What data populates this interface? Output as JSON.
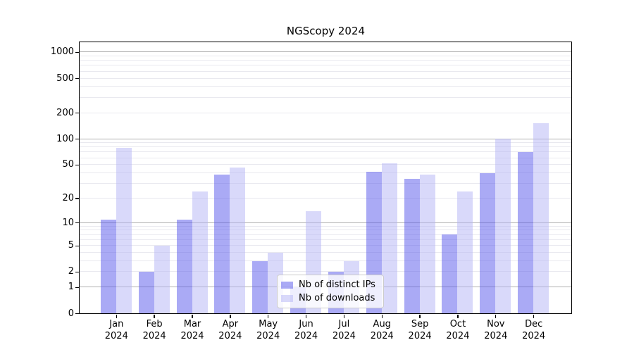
{
  "figure": {
    "title": "NGScopy 2024"
  },
  "chart_data": {
    "type": "bar",
    "title": "NGScopy 2024",
    "xlabel": "",
    "ylabel": "",
    "categories": [
      "Jan",
      "Feb",
      "Mar",
      "Apr",
      "May",
      "Jun",
      "Jul",
      "Aug",
      "Sep",
      "Oct",
      "Nov",
      "Dec"
    ],
    "category_year": "2024",
    "series": [
      {
        "name": "Nb of distinct IPs",
        "color": "#aaaaf5",
        "render_color": "rgba(85,85,235,0.5)",
        "values": [
          11,
          2,
          11,
          38,
          3,
          1,
          2,
          41,
          34,
          7,
          40,
          70
        ]
      },
      {
        "name": "Nb of downloads",
        "color": "#d9d9fa",
        "render_color": "rgba(179,179,245,0.5)",
        "values": [
          78,
          5,
          24,
          46,
          4,
          14,
          3,
          52,
          38,
          24,
          100,
          150
        ]
      }
    ],
    "y_scale": "log1p",
    "ylim": [
      0,
      1300
    ],
    "y_ticks": [
      1000,
      500,
      200,
      100,
      50,
      20,
      10,
      5,
      2,
      1,
      0
    ],
    "grid": {
      "shown": true,
      "major_values": [
        1,
        10,
        100,
        1000
      ],
      "minor_digits": [
        2,
        3,
        4,
        5,
        6,
        7,
        8,
        9
      ]
    },
    "legend": {
      "position": "lower-center",
      "entries": [
        "Nb of distinct IPs",
        "Nb of downloads"
      ]
    }
  },
  "colors": {
    "background": "#ffffff",
    "spine": "#000000",
    "major_grid": "#b0b0b0",
    "minor_grid": "#e9e9ef",
    "bar_distinct_ips": "#aaaaf5",
    "bar_downloads": "#d9d9fa",
    "legend_border": "#cccccc"
  }
}
